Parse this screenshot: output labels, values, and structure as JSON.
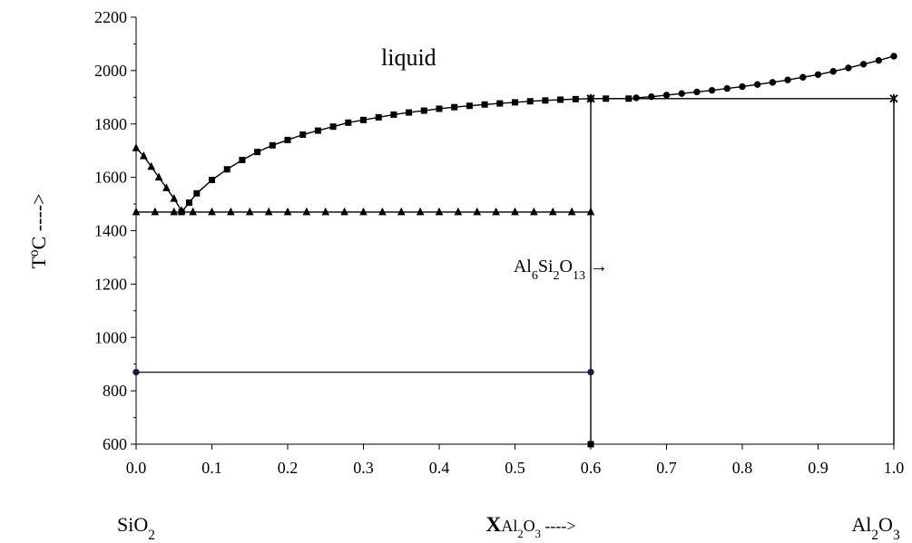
{
  "chart_data": {
    "type": "line",
    "annotations": [
      "liquid",
      "Al6Si2O13 →"
    ],
    "x_end_labels": [
      "SiO2",
      "Al2O3"
    ],
    "xlabel": "XAl2O3 ---->",
    "ylabel": "ToC ---->",
    "xlim": [
      0,
      1
    ],
    "ylim": [
      600,
      2200
    ],
    "xticks": [
      {
        "value": 0,
        "label": "0.0"
      },
      {
        "value": 0.1,
        "label": "0.1"
      },
      {
        "value": 0.2,
        "label": "0.2"
      },
      {
        "value": 0.3,
        "label": "0.3"
      },
      {
        "value": 0.4,
        "label": "0.4"
      },
      {
        "value": 0.5,
        "label": "0.5"
      },
      {
        "value": 0.6,
        "label": "0.6"
      },
      {
        "value": 0.7,
        "label": "0.7"
      },
      {
        "value": 0.8,
        "label": "0.8"
      },
      {
        "value": 0.9,
        "label": "0.9"
      },
      {
        "value": 1,
        "label": "1.0"
      }
    ],
    "yticks": [
      600,
      800,
      1000,
      1200,
      1400,
      1600,
      1800,
      2000,
      2200
    ],
    "grid": false,
    "series": [
      {
        "color": "#000000",
        "marker": "triangle",
        "x": [
          0,
          0.01,
          0.02,
          0.03,
          0.04,
          0.05,
          0.06
        ],
        "values": [
          1710,
          1680,
          1640,
          1600,
          1560,
          1520,
          1475
        ]
      },
      {
        "color": "#000000",
        "marker": "square",
        "x": [
          0.06,
          0.07,
          0.08,
          0.1,
          0.12,
          0.14,
          0.16,
          0.18,
          0.2,
          0.22,
          0.24,
          0.26,
          0.28,
          0.3,
          0.32,
          0.34,
          0.36,
          0.38,
          0.4,
          0.42,
          0.44,
          0.46,
          0.48,
          0.5,
          0.52,
          0.54,
          0.56,
          0.58,
          0.6,
          0.62,
          0.65
        ],
        "values": [
          1470,
          1505,
          1540,
          1590,
          1630,
          1665,
          1695,
          1720,
          1740,
          1760,
          1775,
          1790,
          1805,
          1815,
          1825,
          1835,
          1843,
          1850,
          1857,
          1863,
          1868,
          1873,
          1877,
          1881,
          1885,
          1888,
          1891,
          1893,
          1895,
          1895,
          1895
        ]
      },
      {
        "color": "#000000",
        "marker": "circle",
        "x": [
          0.66,
          0.68,
          0.7,
          0.72,
          0.74,
          0.76,
          0.78,
          0.8,
          0.82,
          0.84,
          0.86,
          0.88,
          0.9,
          0.92,
          0.94,
          0.96,
          0.98,
          1
        ],
        "values": [
          1898,
          1902,
          1908,
          1914,
          1920,
          1926,
          1933,
          1940,
          1948,
          1956,
          1965,
          1975,
          1985,
          1997,
          2010,
          2024,
          2038,
          2054
        ]
      },
      {
        "color": "#000000",
        "marker": "triangle",
        "x": [
          0,
          0.025,
          0.05,
          0.075,
          0.1,
          0.125,
          0.15,
          0.175,
          0.2,
          0.225,
          0.25,
          0.275,
          0.3,
          0.325,
          0.35,
          0.375,
          0.4,
          0.425,
          0.45,
          0.475,
          0.5,
          0.525,
          0.55,
          0.575,
          0.6
        ],
        "values": [
          1470,
          1470,
          1470,
          1470,
          1470,
          1470,
          1470,
          1470,
          1470,
          1470,
          1470,
          1470,
          1470,
          1470,
          1470,
          1470,
          1470,
          1470,
          1470,
          1470,
          1470,
          1470,
          1470,
          1470,
          1470
        ]
      },
      {
        "color": "#000000",
        "marker": "square",
        "x": [
          0.6,
          0.6
        ],
        "values": [
          600,
          1895
        ]
      },
      {
        "color": "#000000",
        "marker": "star",
        "x": [
          0.6,
          1
        ],
        "values": [
          1895,
          1895
        ]
      },
      {
        "color": "#000000",
        "marker": "none",
        "x": [
          1,
          1
        ],
        "values": [
          600,
          1895
        ]
      },
      {
        "color": "#1a1a4a",
        "marker": "circle",
        "x": [
          0,
          0.6
        ],
        "values": [
          870,
          870
        ]
      }
    ]
  }
}
